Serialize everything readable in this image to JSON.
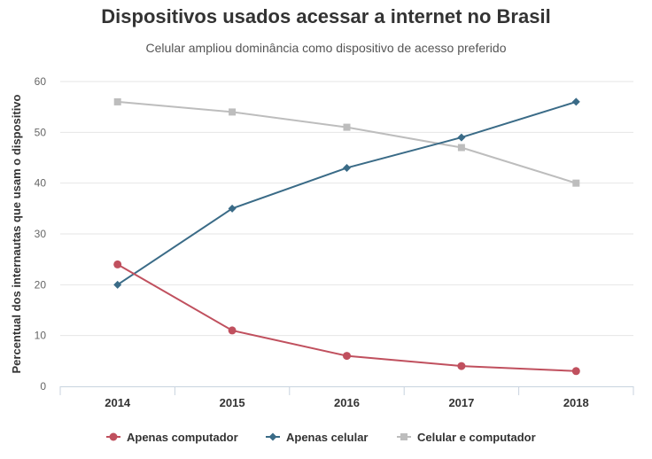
{
  "chart_data": {
    "type": "line",
    "title": "Dispositivos usados acessar a internet no Brasil",
    "subtitle": "Celular ampliou dominância como dispositivo de acesso preferido",
    "xlabel": "",
    "ylabel": "Percentual dos internautas que usam o dispositivo",
    "ylim": [
      0,
      60
    ],
    "yticks": [
      0,
      10,
      20,
      30,
      40,
      50,
      60
    ],
    "categories": [
      "2014",
      "2015",
      "2016",
      "2017",
      "2018"
    ],
    "series": [
      {
        "name": "Apenas computador",
        "color": "#c0505e",
        "marker": "circle",
        "values": [
          24,
          11,
          6,
          4,
          3
        ]
      },
      {
        "name": "Apenas celular",
        "color": "#3a6b87",
        "marker": "diamond",
        "values": [
          20,
          35,
          43,
          49,
          56
        ]
      },
      {
        "name": "Celular e computador",
        "color": "#bdbdbd",
        "marker": "square",
        "values": [
          56,
          54,
          51,
          47,
          40
        ]
      }
    ],
    "grid": true,
    "legend": "bottom-center"
  }
}
